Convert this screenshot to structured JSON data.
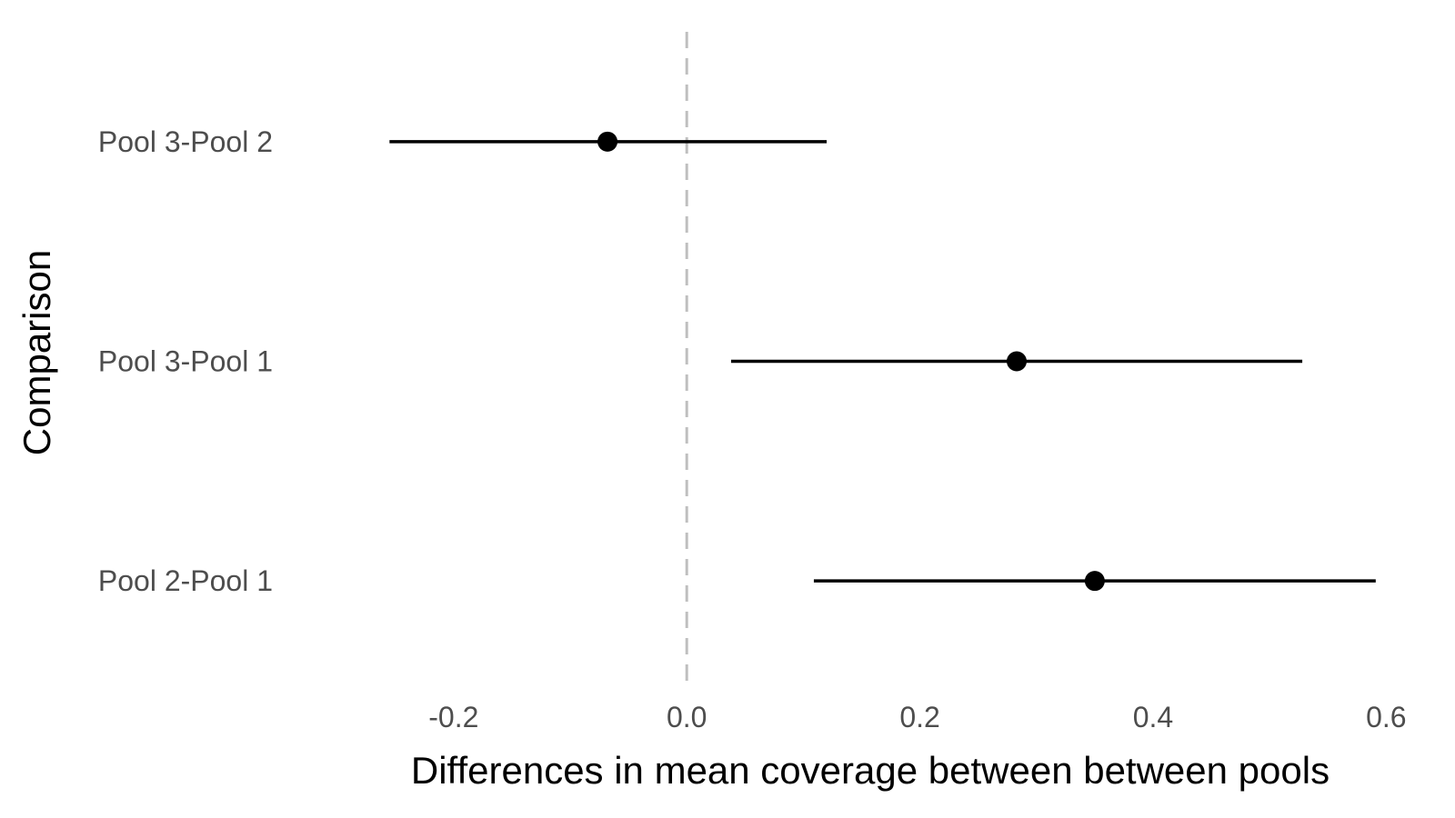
{
  "chart_data": {
    "type": "scatter",
    "subtype": "forest-plot",
    "title": "",
    "xlabel": "Differences in mean coverage between between pools",
    "ylabel": "Comparison",
    "xlim": [
      -0.32,
      0.62
    ],
    "xticks": [
      -0.2,
      0.0,
      0.2,
      0.4,
      0.6
    ],
    "xtick_labels": [
      "-0.2",
      "0.0",
      "0.2",
      "0.4",
      "0.6"
    ],
    "reference_line": {
      "x": 0,
      "style": "dashed",
      "color": "#bfbfbf"
    },
    "grid": false,
    "legend": "none",
    "colors": {
      "marks": "#000000",
      "tick_text": "#4d4d4d"
    },
    "comparisons": [
      {
        "label": "Pool 3-Pool 2",
        "estimate": -0.068,
        "lower": -0.255,
        "upper": 0.12
      },
      {
        "label": "Pool 3-Pool 1",
        "estimate": 0.283,
        "lower": 0.038,
        "upper": 0.528
      },
      {
        "label": "Pool 2-Pool 1",
        "estimate": 0.35,
        "lower": 0.109,
        "upper": 0.591
      }
    ]
  }
}
